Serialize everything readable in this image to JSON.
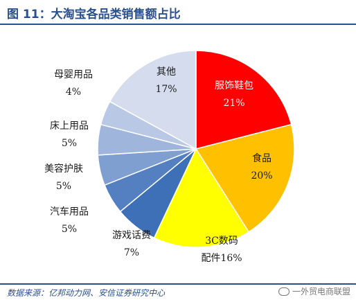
{
  "header": {
    "title": "图 11：大淘宝各品类销售额占比"
  },
  "footer": {
    "source": "数据来源：亿邦动力网、安信证券研究中心",
    "watermark": "一外贸电商联盟"
  },
  "chart_data": {
    "type": "pie",
    "title": "",
    "slices": [
      {
        "name": "服饰鞋包",
        "value": 21,
        "label": "21%",
        "color": "#ff0000"
      },
      {
        "name": "食品",
        "value": 20,
        "label": "20%",
        "color": "#ffc000"
      },
      {
        "name": "3C数码配件",
        "value": 16,
        "label": "16%",
        "color": "#ffff00"
      },
      {
        "name": "游戏话费",
        "value": 7,
        "label": "7%",
        "color": "#3e70b8"
      },
      {
        "name": "汽车用品",
        "value": 5,
        "label": "5%",
        "color": "#5480c1"
      },
      {
        "name": "美容护肤",
        "value": 5,
        "label": "5%",
        "color": "#7f9fd0"
      },
      {
        "name": "床上用品",
        "value": 5,
        "label": "5%",
        "color": "#9fb5dc"
      },
      {
        "name": "母婴用品",
        "value": 4,
        "label": "4%",
        "color": "#b9c8e5"
      },
      {
        "name": "其他",
        "value": 17,
        "label": "17%",
        "color": "#d4dcee"
      }
    ]
  }
}
